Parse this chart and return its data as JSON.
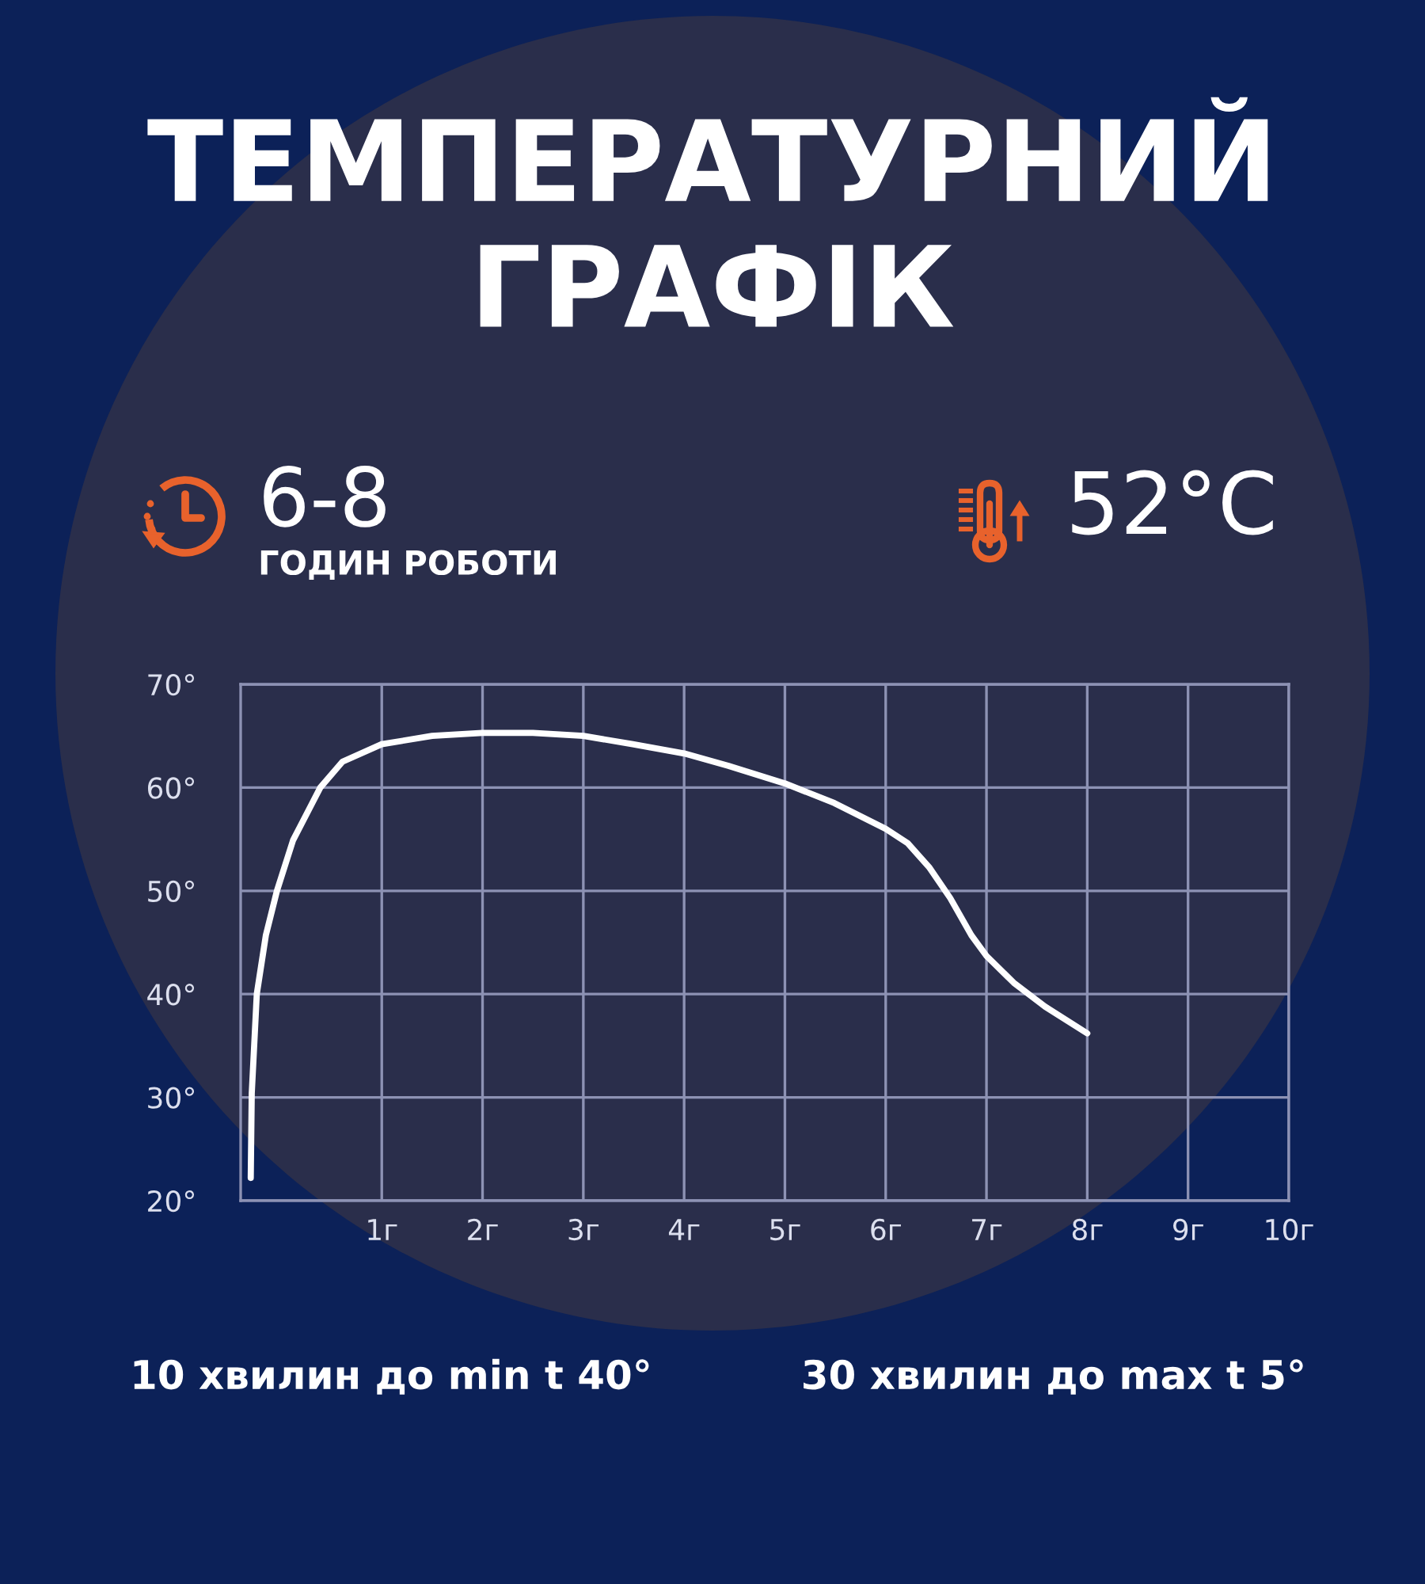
{
  "chart_data": {
    "type": "line",
    "title": "ТЕМПЕРАТУРНИЙ\nГРАФІК",
    "annotations": [
      "6-8",
      "ГОДИН РОБОТИ",
      "52°C",
      "10 хвилин до min t 40°",
      "30 хвилин до max t 5°"
    ],
    "x": [
      -0.3,
      -0.29,
      -0.24,
      -0.15,
      -0.04,
      0.12,
      0.39,
      0.61,
      1.0,
      1.5,
      2.0,
      2.5,
      3.0,
      3.49,
      4.0,
      4.44,
      5.0,
      5.49,
      6.0,
      6.22,
      6.43,
      6.64,
      6.85,
      7.0,
      7.27,
      7.58,
      8.0
    ],
    "series": [
      {
        "color": "#ffffff",
        "values": [
          22.2,
          30.4,
          40.0,
          45.7,
          50.0,
          54.9,
          60.0,
          62.5,
          64.2,
          65.0,
          65.3,
          65.3,
          65.0,
          64.2,
          63.3,
          62.1,
          60.4,
          58.5,
          56.0,
          54.6,
          52.3,
          49.3,
          45.7,
          43.7,
          41.1,
          38.8,
          36.2
        ]
      }
    ],
    "xlim": [
      -0.4,
      10
    ],
    "xticks": [
      {
        "value": 1,
        "label": "1г"
      },
      {
        "value": 2,
        "label": "2г"
      },
      {
        "value": 3,
        "label": "3г"
      },
      {
        "value": 4,
        "label": "4г"
      },
      {
        "value": 5,
        "label": "5г"
      },
      {
        "value": 6,
        "label": "6г"
      },
      {
        "value": 7,
        "label": "7г"
      },
      {
        "value": 8,
        "label": "8г"
      },
      {
        "value": 9,
        "label": "9г"
      },
      {
        "value": 10,
        "label": "10г"
      }
    ],
    "ylim": [
      20,
      70
    ],
    "yticks": [
      {
        "value": 20,
        "label": "20°"
      },
      {
        "value": 30,
        "label": "30°"
      },
      {
        "value": 40,
        "label": "40°"
      },
      {
        "value": 50,
        "label": "50°"
      },
      {
        "value": 60,
        "label": "60°"
      },
      {
        "value": 70,
        "label": "70°"
      }
    ],
    "grid": true,
    "marker": "none",
    "line_style": "solid"
  }
}
